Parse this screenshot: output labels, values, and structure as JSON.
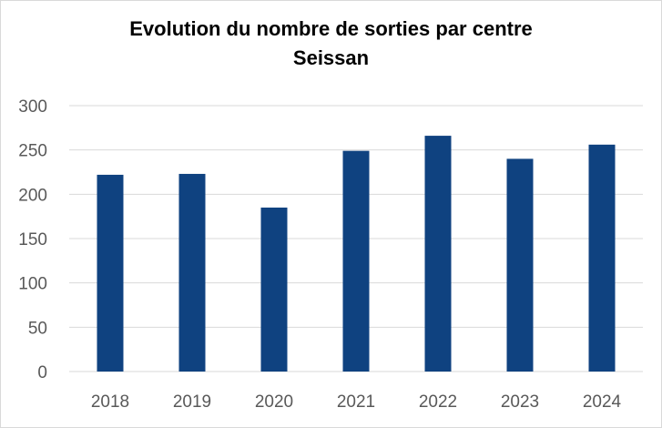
{
  "chart_data": {
    "type": "bar",
    "title_line1": "Evolution du nombre de sorties par centre",
    "title_line2": "Seissan",
    "categories": [
      "2018",
      "2019",
      "2020",
      "2021",
      "2022",
      "2023",
      "2024"
    ],
    "values": [
      222,
      223,
      185,
      249,
      266,
      240,
      256
    ],
    "yticks": [
      "0",
      "50",
      "100",
      "150",
      "200",
      "250",
      "300"
    ],
    "ylim": [
      0,
      300
    ],
    "grid": true,
    "legend": "none",
    "bar_color": "#0f4280",
    "gridline_color": "#d9d9d9"
  }
}
